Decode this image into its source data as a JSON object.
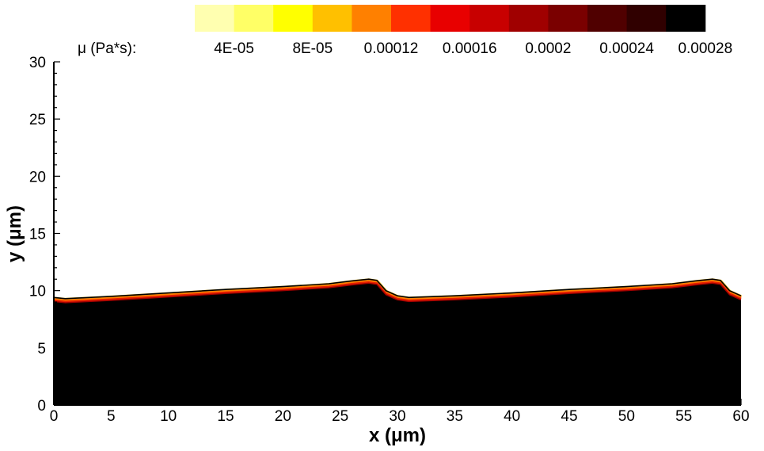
{
  "chart_data": {
    "type": "heatmap",
    "xlabel": "x (μm)",
    "ylabel": "y (μm)",
    "xlim": [
      0,
      60
    ],
    "ylim": [
      0,
      30
    ],
    "x_ticks": [
      "0",
      "5",
      "10",
      "15",
      "20",
      "25",
      "30",
      "35",
      "40",
      "45",
      "50",
      "55",
      "60"
    ],
    "y_ticks": [
      "0",
      "5",
      "10",
      "15",
      "20",
      "25",
      "30"
    ],
    "grid": false,
    "legend": {
      "title": "μ (Pa*s):",
      "placement": "top",
      "colors": [
        "#ffffb0",
        "#ffff66",
        "#ffff00",
        "#ffc000",
        "#ff8000",
        "#ff3000",
        "#e80000",
        "#c80000",
        "#a00000",
        "#7a0000",
        "#500000",
        "#300000",
        "#000000"
      ],
      "labels": [
        "4E-05",
        "8E-05",
        "0.00012",
        "0.00016",
        "0.0002",
        "0.00024",
        "0.00028"
      ]
    },
    "interface_profile": {
      "x": [
        0,
        1,
        5,
        10,
        15,
        20,
        24,
        26,
        27.5,
        28.2,
        29,
        30,
        31,
        35,
        40,
        45,
        50,
        54,
        56,
        57.5,
        58.2,
        59,
        60
      ],
      "y": [
        9.4,
        9.3,
        9.5,
        9.8,
        10.1,
        10.35,
        10.6,
        10.85,
        11.0,
        10.9,
        10.0,
        9.55,
        9.4,
        9.55,
        9.8,
        10.1,
        10.35,
        10.6,
        10.85,
        11.0,
        10.9,
        10.0,
        9.55
      ]
    },
    "interface_colors": [
      "#ffd040",
      "#ff8000",
      "#e82000",
      "#a00000"
    ]
  }
}
